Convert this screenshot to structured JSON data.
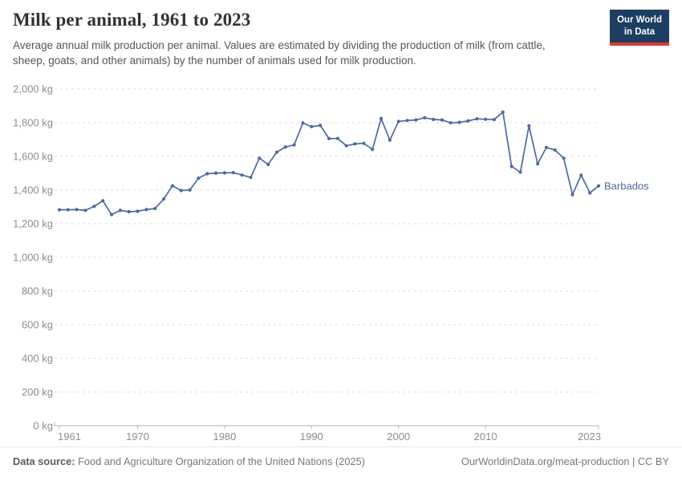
{
  "header": {
    "title": "Milk per animal, 1961 to 2023",
    "subtitle": "Average annual milk production per animal. Values are estimated by dividing the production of milk (from cattle, sheep, goats, and other animals) by the number of animals used for milk production.",
    "logo": {
      "line1": "Our World",
      "line2": "in Data",
      "bg_color": "#1d3d63",
      "accent_color": "#d93a34"
    }
  },
  "chart_data": {
    "type": "line",
    "title": "Milk per animal, 1961 to 2023",
    "unit": "kg",
    "grid": "horizontal-dashed",
    "legend_position": "end-of-line-label",
    "ylim": [
      0,
      2000
    ],
    "ytick_values": [
      0,
      200,
      400,
      600,
      800,
      1000,
      1200,
      1400,
      1600,
      1800,
      2000
    ],
    "ytick_labels": [
      "0 kg",
      "200 kg",
      "400 kg",
      "600 kg",
      "800 kg",
      "1,000 kg",
      "1,200 kg",
      "1,400 kg",
      "1,600 kg",
      "1,800 kg",
      "2,000 kg"
    ],
    "xticks": [
      1961,
      1970,
      1980,
      1990,
      2000,
      2010,
      2023
    ],
    "colors": {
      "line": "#4c6a9c",
      "grid": "#dedede",
      "axis": "#b3b3b3",
      "tick_label": "#8c8c8c"
    },
    "series": [
      {
        "name": "Barbados",
        "color": "#4c6a9c",
        "x": [
          1961,
          1962,
          1963,
          1964,
          1965,
          1966,
          1967,
          1968,
          1969,
          1970,
          1971,
          1972,
          1973,
          1974,
          1975,
          1976,
          1977,
          1978,
          1979,
          1980,
          1981,
          1982,
          1983,
          1984,
          1985,
          1986,
          1987,
          1988,
          1989,
          1990,
          1991,
          1992,
          1993,
          1994,
          1995,
          1996,
          1997,
          1998,
          1999,
          2000,
          2001,
          2002,
          2003,
          2004,
          2005,
          2006,
          2007,
          2008,
          2009,
          2010,
          2011,
          2012,
          2013,
          2014,
          2015,
          2016,
          2017,
          2018,
          2019,
          2020,
          2021,
          2022,
          2023
        ],
        "values": [
          1283,
          1283,
          1284,
          1279,
          1303,
          1336,
          1254,
          1279,
          1271,
          1274,
          1284,
          1290,
          1346,
          1425,
          1397,
          1400,
          1470,
          1497,
          1500,
          1502,
          1503,
          1489,
          1475,
          1589,
          1552,
          1625,
          1655,
          1668,
          1798,
          1776,
          1784,
          1705,
          1706,
          1663,
          1674,
          1677,
          1641,
          1825,
          1696,
          1807,
          1813,
          1816,
          1829,
          1819,
          1816,
          1799,
          1802,
          1810,
          1823,
          1820,
          1818,
          1863,
          1540,
          1506,
          1781,
          1555,
          1653,
          1637,
          1589,
          1372,
          1488,
          1383,
          1424
        ]
      }
    ],
    "end_label": "Barbados"
  },
  "footer": {
    "datasource_label": "Data source:",
    "datasource": " Food and Agriculture Organization of the United Nations (2025)",
    "link": "OurWorldinData.org/meat-production | CC BY"
  }
}
